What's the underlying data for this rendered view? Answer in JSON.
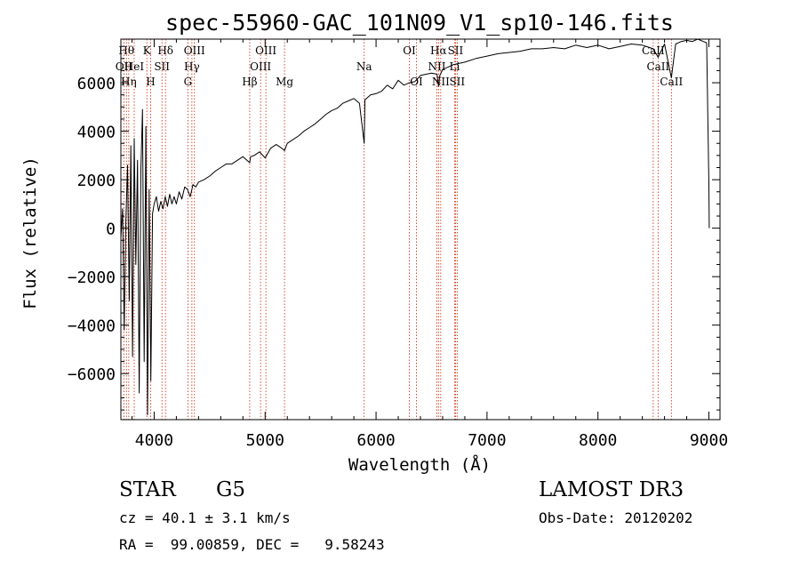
{
  "chart_data": {
    "type": "line",
    "title": "spec-55960-GAC_101N09_V1_sp10-146.fits",
    "xlabel": "Wavelength (Å)",
    "ylabel": "Flux (relative)",
    "xlim": [
      3700,
      9100
    ],
    "ylim": [
      -7900,
      7800
    ],
    "xticks": [
      4000,
      5000,
      6000,
      7000,
      8000,
      9000
    ],
    "yticks": [
      -6000,
      -4000,
      -2000,
      0,
      2000,
      4000,
      6000
    ],
    "series": [
      {
        "name": "flux",
        "x": [
          3700,
          3715,
          3730,
          3745,
          3760,
          3775,
          3790,
          3805,
          3820,
          3835,
          3850,
          3865,
          3880,
          3895,
          3910,
          3925,
          3940,
          3955,
          3970,
          3985,
          4000,
          4020,
          4040,
          4060,
          4080,
          4100,
          4120,
          4140,
          4160,
          4180,
          4200,
          4225,
          4250,
          4275,
          4300,
          4325,
          4350,
          4375,
          4400,
          4450,
          4500,
          4550,
          4600,
          4650,
          4700,
          4750,
          4800,
          4850,
          4861,
          4870,
          4900,
          4950,
          5000,
          5050,
          5100,
          5150,
          5175,
          5200,
          5250,
          5300,
          5350,
          5400,
          5450,
          5500,
          5550,
          5600,
          5650,
          5700,
          5750,
          5800,
          5850,
          5893,
          5900,
          5950,
          6000,
          6050,
          6100,
          6150,
          6200,
          6250,
          6300,
          6350,
          6400,
          6450,
          6500,
          6550,
          6563,
          6575,
          6600,
          6650,
          6700,
          6750,
          6800,
          6900,
          7000,
          7100,
          7200,
          7300,
          7400,
          7500,
          7600,
          7700,
          7800,
          7900,
          8000,
          8100,
          8200,
          8300,
          8400,
          8498,
          8542,
          8600,
          8662,
          8700,
          8750,
          8800,
          8850,
          8900,
          8950,
          8980,
          9000,
          9003
        ],
        "y": [
          -400,
          800,
          -4200,
          300,
          2600,
          -3000,
          3400,
          -5300,
          3700,
          -1500,
          2800,
          -6800,
          2400,
          4900,
          -5500,
          4200,
          -7700,
          1600,
          -6300,
          600,
          1000,
          1300,
          700,
          1100,
          800,
          1300,
          900,
          1400,
          1000,
          1300,
          1000,
          1500,
          1200,
          1700,
          1600,
          1300,
          1800,
          1700,
          1900,
          2000,
          2150,
          2350,
          2500,
          2650,
          2650,
          2800,
          2950,
          2750,
          2700,
          2950,
          3000,
          3150,
          2900,
          3300,
          3450,
          3300,
          3200,
          3500,
          3650,
          3800,
          4000,
          4150,
          4300,
          4500,
          4700,
          4850,
          4950,
          5150,
          5250,
          5350,
          5150,
          3500,
          5300,
          5500,
          5550,
          5650,
          5900,
          5750,
          6100,
          5900,
          6000,
          6050,
          6300,
          6350,
          6400,
          6350,
          5850,
          6300,
          6550,
          6650,
          6750,
          6800,
          6850,
          7000,
          7100,
          7200,
          7250,
          7300,
          7400,
          7400,
          7450,
          7400,
          7550,
          7450,
          7550,
          7400,
          7500,
          7600,
          7550,
          7400,
          7050,
          7600,
          6200,
          7600,
          7700,
          7750,
          7700,
          7800,
          7700,
          7650,
          1800,
          0
        ]
      }
    ],
    "spectral_lines": [
      {
        "wavelength": 3727,
        "label": "OII",
        "row": 1
      },
      {
        "wavelength": 3750,
        "label": "Hθ",
        "row": 0
      },
      {
        "wavelength": 3771,
        "label": "Hη",
        "row": 2
      },
      {
        "wavelength": 3820,
        "label": "HeI",
        "row": 1
      },
      {
        "wavelength": 3934,
        "label": "K",
        "row": 0
      },
      {
        "wavelength": 3968,
        "label": "H",
        "row": 2
      },
      {
        "wavelength": 4070,
        "label": "SII",
        "row": 1
      },
      {
        "wavelength": 4102,
        "label": "Hδ",
        "row": 0
      },
      {
        "wavelength": 4304,
        "label": "G",
        "row": 2
      },
      {
        "wavelength": 4340,
        "label": "Hγ",
        "row": 1
      },
      {
        "wavelength": 4363,
        "label": "OIII",
        "row": 0
      },
      {
        "wavelength": 4861,
        "label": "Hβ",
        "row": 2
      },
      {
        "wavelength": 4959,
        "label": "OIII",
        "row": 1
      },
      {
        "wavelength": 5007,
        "label": "OIII",
        "row": 0
      },
      {
        "wavelength": 5175,
        "label": "Mg",
        "row": 2
      },
      {
        "wavelength": 5893,
        "label": "Na",
        "row": 1
      },
      {
        "wavelength": 6300,
        "label": "OI",
        "row": 0
      },
      {
        "wavelength": 6364,
        "label": "OI",
        "row": 2
      },
      {
        "wavelength": 6548,
        "label": "NII",
        "row": 1
      },
      {
        "wavelength": 6563,
        "label": "Hα",
        "row": 0
      },
      {
        "wavelength": 6583,
        "label": "NII",
        "row": 2
      },
      {
        "wavelength": 6708,
        "label": "Li",
        "row": 1
      },
      {
        "wavelength": 6716,
        "label": "SII",
        "row": 0
      },
      {
        "wavelength": 6731,
        "label": "SII",
        "row": 2
      },
      {
        "wavelength": 8498,
        "label": "CaII",
        "row": 0
      },
      {
        "wavelength": 8542,
        "label": "CaII",
        "row": 1
      },
      {
        "wavelength": 8662,
        "label": "CaII",
        "row": 2
      }
    ]
  },
  "info": {
    "object_type": "STAR",
    "subclass": "G5",
    "survey": "LAMOST DR3",
    "redshift": "cz = 40.1 ± 3.1 km/s",
    "obs_date": "Obs-Date: 20120202",
    "coords": "RA =  99.00859, DEC =   9.58243"
  },
  "colors": {
    "line": "#000000",
    "marker": "#cc2200",
    "text": "#000000"
  }
}
